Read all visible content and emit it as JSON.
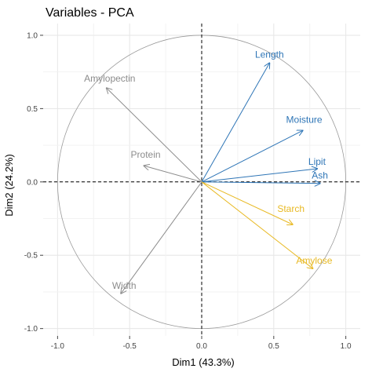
{
  "chart_data": {
    "type": "scatter",
    "title": "Variables - PCA",
    "xlabel": "Dim1 (43.3%)",
    "ylabel": "Dim2 (24.2%)",
    "xlim": [
      -1.1,
      1.1
    ],
    "ylim": [
      -1.05,
      1.08
    ],
    "x_ticks": [
      "-1.0",
      "-0.5",
      "0.0",
      "0.5",
      "1.0"
    ],
    "y_ticks": [
      "-1.0",
      "-0.5",
      "0.0",
      "0.5",
      "1.0"
    ],
    "grid": true,
    "correlation_circle": true,
    "colors": {
      "blue": "#2E75B6",
      "gold": "#E8B923",
      "grey": "#8C8C8C"
    },
    "vectors": [
      {
        "name": "Length",
        "x": 0.47,
        "y": 0.81,
        "color": "blue"
      },
      {
        "name": "Moisture",
        "x": 0.7,
        "y": 0.35,
        "color": "blue"
      },
      {
        "name": "Lipit",
        "x": 0.8,
        "y": 0.09,
        "color": "blue"
      },
      {
        "name": "Ash",
        "x": 0.82,
        "y": -0.01,
        "color": "blue"
      },
      {
        "name": "Starch",
        "x": 0.63,
        "y": -0.29,
        "color": "gold"
      },
      {
        "name": "Amylose",
        "x": 0.77,
        "y": -0.59,
        "color": "gold"
      },
      {
        "name": "Amylopectin",
        "x": -0.66,
        "y": 0.64,
        "color": "grey"
      },
      {
        "name": "Protein",
        "x": -0.4,
        "y": 0.11,
        "color": "grey"
      },
      {
        "name": "Width",
        "x": -0.56,
        "y": -0.76,
        "color": "grey"
      }
    ]
  }
}
